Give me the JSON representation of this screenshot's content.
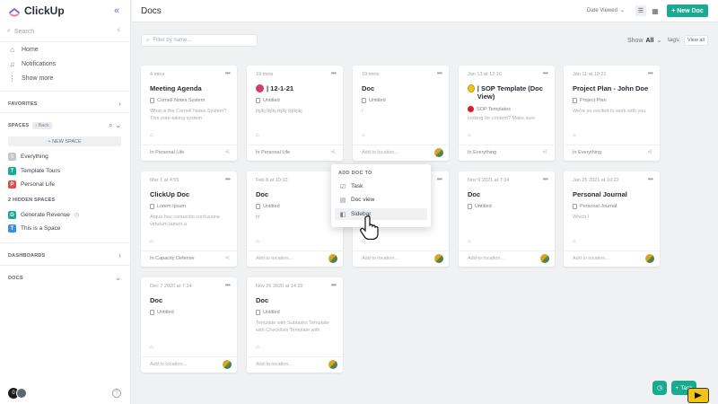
{
  "app": {
    "name": "ClickUp"
  },
  "sidebar": {
    "search_placeholder": "Search",
    "nav": [
      {
        "label": "Home",
        "icon": "home-icon"
      },
      {
        "label": "Notifications",
        "icon": "bell-icon"
      },
      {
        "label": "Show more",
        "icon": "more-icon"
      }
    ],
    "favorites_label": "FAVORITES",
    "spaces_label": "SPACES",
    "back_label": "Back",
    "new_space_label": "+ NEW SPACE",
    "spaces": [
      {
        "label": "Everything",
        "color": "#b3b8c0",
        "letter": "≡"
      },
      {
        "label": "Template Tours",
        "color": "#19aa92",
        "letter": "T"
      },
      {
        "label": "Personal Life",
        "color": "#e84a4a",
        "letter": "P"
      }
    ],
    "hidden_spaces_label": "2 HIDDEN SPACES",
    "hidden_spaces": [
      {
        "label": "Generate Revenue",
        "color": "#19aa92",
        "letter": "G"
      },
      {
        "label": "This is a Space",
        "color": "#3a8ee6",
        "letter": "T"
      }
    ],
    "dashboards_label": "DASHBOARDS",
    "docs_label": "DOCS",
    "user_initial": "0"
  },
  "header": {
    "title": "Docs",
    "sort_label": "Date Viewed",
    "new_doc_label": "+ New Doc"
  },
  "filter": {
    "placeholder": "Filter by name...",
    "show_label": "Show",
    "show_value": "All",
    "tags_label": "tags:",
    "view_all_label": "View all"
  },
  "docs": [
    {
      "date": "4 mins",
      "title": "Meeting Agenda",
      "sub": "Cornell Notes System",
      "body": "What is the Cornell Notes System? This note-taking system",
      "location": "In Personal Life",
      "loc_empty": false
    },
    {
      "date": "19 mins",
      "title": "| 12-1-21",
      "sub": "Untitled",
      "body": "Ikjlkj lkjlkj lkjlkj lkjlkjlkj",
      "location": "In Personal Life",
      "loc_empty": false
    },
    {
      "date": "19 mins",
      "title": "Doc",
      "sub": "Untitled",
      "body": "/",
      "location": "Add to location...",
      "loc_empty": true
    },
    {
      "date": "Jan 13 at 12:16",
      "title": "| SOP Template (Doc View)",
      "sub": "SOP Templates",
      "body": "looking for content? Make sure",
      "location": "In Everything",
      "loc_empty": false
    },
    {
      "date": "Jan 11 at 10:21",
      "title": "Project Plan - John Doe",
      "sub": "Project Plan",
      "body": "We're so excited to work with you",
      "location": "In Everything",
      "loc_empty": false
    },
    {
      "date": "Mar 1 at 4:55",
      "title": "ClickUp Doc",
      "sub": "Lorem Ipsum",
      "body": "Atque hoc conuectio confusione virtutum tamen a",
      "location": "In Capacity Defense",
      "loc_empty": false
    },
    {
      "date": "Feb 8 at 10:10",
      "title": "Doc",
      "sub": "Untitled",
      "body": "hi",
      "location": "Add to location...",
      "loc_empty": true
    },
    {
      "date": "",
      "title": "",
      "sub": "",
      "body": "",
      "location": "Add to location...",
      "loc_empty": true
    },
    {
      "date": "Nov 9 2021 at 7:34",
      "title": "Doc",
      "sub": "Untitled",
      "body": "",
      "location": "Add to location...",
      "loc_empty": true
    },
    {
      "date": "Jan 25 2021 at 10:22",
      "title": "Personal Journal",
      "sub": "Personal Journal",
      "body": "Which I",
      "location": "Add to location...",
      "loc_empty": true
    },
    {
      "date": "Dec 7 2020 at 7:24",
      "title": "Doc",
      "sub": "Untitled",
      "body": "",
      "location": "Add to location...",
      "loc_empty": true
    },
    {
      "date": "Nov 26 2020 at 14:20",
      "title": "Doc",
      "sub": "Untitled",
      "body": "Template with Subtasks Template with Checklists Template with",
      "location": "Add to location...",
      "loc_empty": true
    }
  ],
  "popup": {
    "heading": "ADD DOC TO",
    "items": [
      {
        "label": "Task",
        "icon": "checkbox-icon"
      },
      {
        "label": "Doc view",
        "icon": "doc-icon"
      },
      {
        "label": "Sidebar",
        "icon": "sidebar-icon"
      }
    ]
  },
  "fab": {
    "task_label": "Task"
  },
  "colors": {
    "accent": "#7b68ee",
    "primary": "#19aa92"
  }
}
